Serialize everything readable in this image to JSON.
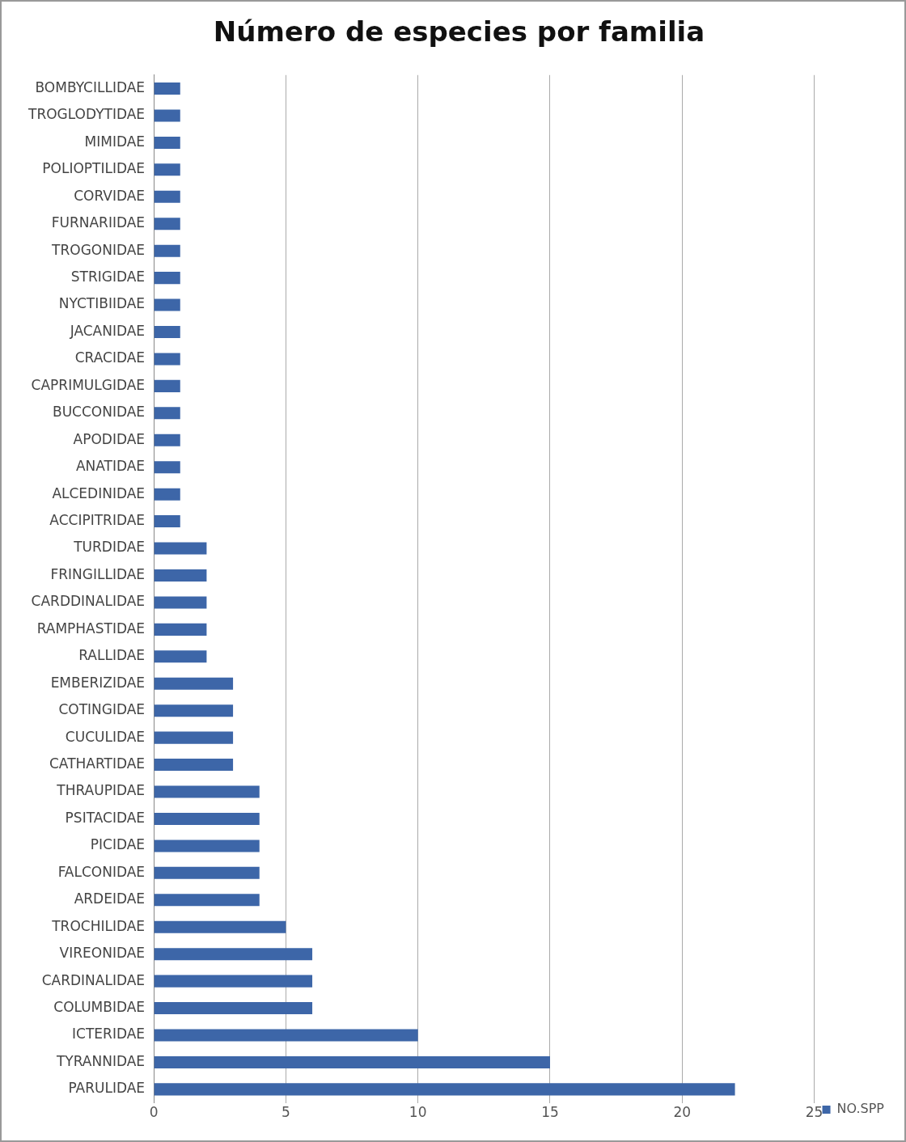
{
  "chart_data": {
    "type": "bar",
    "orientation": "horizontal",
    "title": "Número de especies por familia",
    "categories": [
      "BOMBYCILLIDAE",
      "TROGLODYTIDAE",
      "MIMIDAE",
      "POLIOPTILIDAE",
      "CORVIDAE",
      "FURNARIIDAE",
      "TROGONIDAE",
      "STRIGIDAE",
      "NYCTIBIIDAE",
      "JACANIDAE",
      "CRACIDAE",
      "CAPRIMULGIDAE",
      "BUCCONIDAE",
      "APODIDAE",
      "ANATIDAE",
      "ALCEDINIDAE",
      "ACCIPITRIDAE",
      "TURDIDAE",
      "FRINGILLIDAE",
      "CARDDINALIDAE",
      "RAMPHASTIDAE",
      "RALLIDAE",
      "EMBERIZIDAE",
      "COTINGIDAE",
      "CUCULIDAE",
      "CATHARTIDAE",
      "THRAUPIDAE",
      "PSITACIDAE",
      "PICIDAE",
      "FALCONIDAE",
      "ARDEIDAE",
      "TROCHILIDAE",
      "VIREONIDAE",
      "CARDINALIDAE",
      "COLUMBIDAE",
      "ICTERIDAE",
      "TYRANNIDAE",
      "PARULIDAE"
    ],
    "series": [
      {
        "name": "NO.SPP",
        "color": "#3d66a8",
        "values": [
          1,
          1,
          1,
          1,
          1,
          1,
          1,
          1,
          1,
          1,
          1,
          1,
          1,
          1,
          1,
          1,
          1,
          2,
          2,
          2,
          2,
          2,
          3,
          3,
          3,
          3,
          4,
          4,
          4,
          4,
          4,
          5,
          6,
          6,
          6,
          10,
          15,
          22
        ]
      }
    ],
    "xlim": [
      0,
      25
    ],
    "xticks": [
      0,
      5,
      10,
      15,
      20,
      25
    ],
    "grid": "x",
    "legend": "bottom right"
  }
}
